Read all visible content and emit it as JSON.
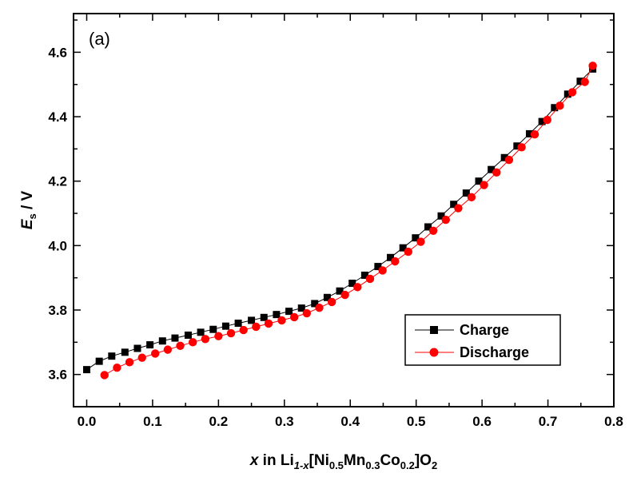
{
  "chart_data": {
    "type": "line",
    "panel_label": "(a)",
    "xlabel": {
      "italic": "x",
      "text": " in Li",
      "sub1": "1-x",
      "part2": "[Ni",
      "sub2": "0.5",
      "part3": "Mn",
      "sub3": "0.3",
      "part4": "Co",
      "sub4": "0.2",
      "part5": "]O",
      "sub5": "2"
    },
    "ylabel": {
      "italic": "E",
      "sub": "s",
      "text": " / V"
    },
    "xlim": [
      -0.02,
      0.8
    ],
    "ylim": [
      3.5,
      4.72
    ],
    "x_ticks": [
      0.0,
      0.1,
      0.2,
      0.3,
      0.4,
      0.5,
      0.6,
      0.7,
      0.8
    ],
    "x_tick_labels": [
      "0.0",
      "0.1",
      "0.2",
      "0.3",
      "0.4",
      "0.5",
      "0.6",
      "0.7",
      "0.8"
    ],
    "y_ticks": [
      3.6,
      3.8,
      4.0,
      4.2,
      4.4,
      4.6
    ],
    "y_tick_labels": [
      "3.6",
      "3.8",
      "4.0",
      "4.2",
      "4.4",
      "4.6"
    ],
    "legend_position": "lower-right",
    "series": [
      {
        "name": "Charge",
        "color": "#000000",
        "marker": "square",
        "x": [
          0.0,
          0.019,
          0.038,
          0.058,
          0.077,
          0.096,
          0.115,
          0.134,
          0.154,
          0.173,
          0.192,
          0.211,
          0.23,
          0.25,
          0.269,
          0.288,
          0.307,
          0.326,
          0.346,
          0.365,
          0.384,
          0.403,
          0.422,
          0.442,
          0.461,
          0.48,
          0.499,
          0.518,
          0.538,
          0.557,
          0.576,
          0.595,
          0.614,
          0.634,
          0.653,
          0.672,
          0.691,
          0.71,
          0.73,
          0.749,
          0.768
        ],
        "y": [
          3.615,
          3.641,
          3.657,
          3.669,
          3.681,
          3.692,
          3.704,
          3.713,
          3.722,
          3.731,
          3.74,
          3.75,
          3.759,
          3.768,
          3.777,
          3.786,
          3.796,
          3.806,
          3.82,
          3.839,
          3.859,
          3.883,
          3.908,
          3.935,
          3.963,
          3.993,
          4.024,
          4.058,
          4.092,
          4.128,
          4.163,
          4.2,
          4.236,
          4.273,
          4.309,
          4.347,
          4.385,
          4.428,
          4.47,
          4.51,
          4.548
        ]
      },
      {
        "name": "Discharge",
        "color": "#ff0000",
        "marker": "circle",
        "x": [
          0.027,
          0.046,
          0.065,
          0.084,
          0.104,
          0.123,
          0.142,
          0.161,
          0.18,
          0.2,
          0.219,
          0.238,
          0.257,
          0.276,
          0.296,
          0.315,
          0.334,
          0.353,
          0.372,
          0.392,
          0.411,
          0.43,
          0.449,
          0.468,
          0.488,
          0.507,
          0.526,
          0.545,
          0.564,
          0.584,
          0.603,
          0.622,
          0.641,
          0.66,
          0.68,
          0.699,
          0.718,
          0.737,
          0.756,
          0.768
        ],
        "y": [
          3.598,
          3.621,
          3.638,
          3.652,
          3.665,
          3.677,
          3.689,
          3.7,
          3.71,
          3.719,
          3.728,
          3.738,
          3.748,
          3.758,
          3.768,
          3.778,
          3.79,
          3.807,
          3.825,
          3.847,
          3.871,
          3.897,
          3.923,
          3.951,
          3.981,
          4.012,
          4.046,
          4.08,
          4.116,
          4.15,
          4.188,
          4.227,
          4.266,
          4.305,
          4.345,
          4.39,
          4.434,
          4.476,
          4.508,
          4.558
        ]
      }
    ]
  }
}
